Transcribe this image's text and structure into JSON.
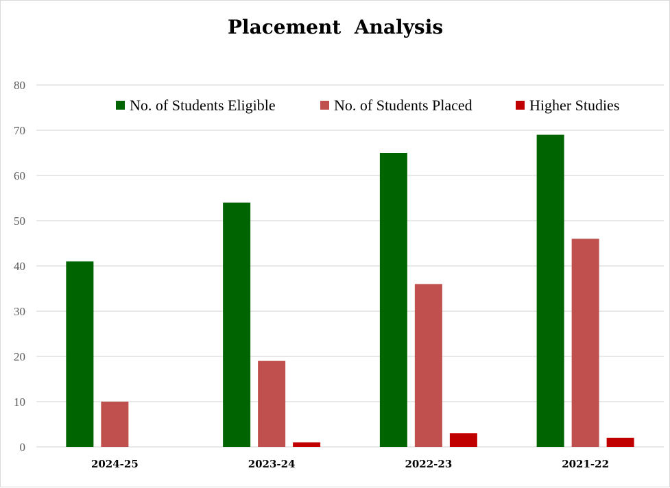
{
  "chart_data": {
    "type": "bar",
    "title": "Placement  Analysis",
    "categories": [
      "2024-25",
      "2023-24",
      "2022-23",
      "2021-22"
    ],
    "series": [
      {
        "name": "No. of Students Eligible",
        "color": "#006400",
        "values": [
          41,
          54,
          65,
          69
        ]
      },
      {
        "name": "No. of Students Placed",
        "color": "#c0504d",
        "values": [
          10,
          19,
          36,
          46
        ]
      },
      {
        "name": "Higher Studies",
        "color": "#c00000",
        "values": [
          0,
          1,
          3,
          2
        ]
      }
    ],
    "ylim": [
      0,
      80
    ],
    "yticks": [
      0,
      10,
      20,
      30,
      40,
      50,
      60,
      70,
      80
    ],
    "grid": true,
    "legend_position": "top-right"
  }
}
